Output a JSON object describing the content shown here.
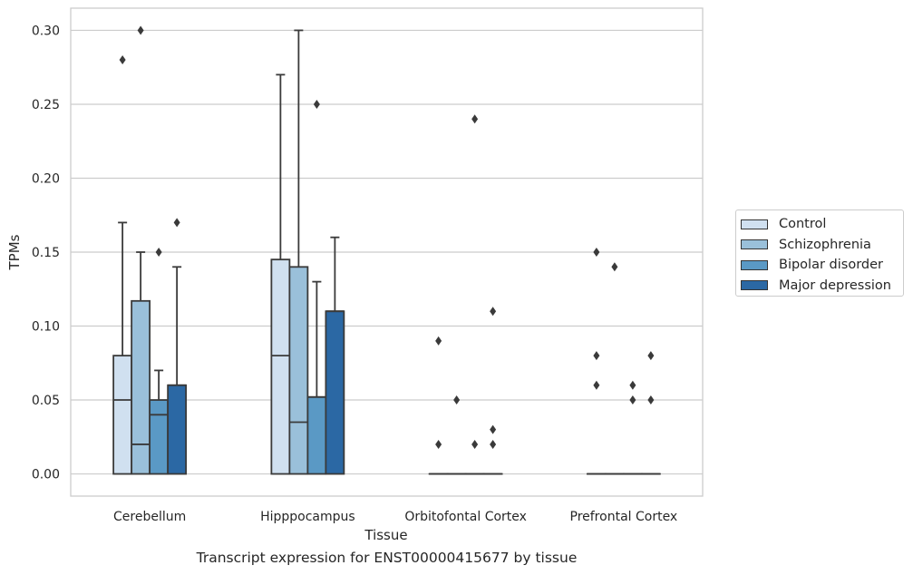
{
  "chart_data": {
    "type": "box",
    "xlabel": "Tissue",
    "ylabel": "TPMs",
    "caption": "Transcript expression for ENST00000415677 by tissue",
    "ylim": [
      -0.015,
      0.315
    ],
    "yticks": [
      "0.00",
      "0.05",
      "0.10",
      "0.15",
      "0.20",
      "0.25",
      "0.30"
    ],
    "grid": "horizontal",
    "legend_position": "right",
    "categories": [
      "Cerebellum",
      "Hipppocampus",
      "Orbitofontal Cortex",
      "Prefrontal Cortex"
    ],
    "series": [
      {
        "name": "Control",
        "color": "#d0e0f0",
        "boxes": [
          {
            "q1": 0.0,
            "median": 0.05,
            "q3": 0.08,
            "whisker_low": 0.0,
            "whisker_high": 0.17,
            "outliers": [
              0.28
            ]
          },
          {
            "q1": 0.0,
            "median": 0.08,
            "q3": 0.145,
            "whisker_low": 0.0,
            "whisker_high": 0.27,
            "outliers": []
          },
          {
            "q1": 0.0,
            "median": 0.0,
            "q3": 0.0,
            "whisker_low": 0.0,
            "whisker_high": 0.0,
            "outliers": [
              0.02,
              0.09
            ]
          },
          {
            "q1": 0.0,
            "median": 0.0,
            "q3": 0.0,
            "whisker_low": 0.0,
            "whisker_high": 0.0,
            "outliers": [
              0.06,
              0.08,
              0.15
            ]
          }
        ]
      },
      {
        "name": "Schizophrenia",
        "color": "#9ac0da",
        "boxes": [
          {
            "q1": 0.0,
            "median": 0.02,
            "q3": 0.117,
            "whisker_low": 0.0,
            "whisker_high": 0.15,
            "outliers": [
              0.3
            ]
          },
          {
            "q1": 0.0,
            "median": 0.035,
            "q3": 0.14,
            "whisker_low": 0.0,
            "whisker_high": 0.3,
            "outliers": []
          },
          {
            "q1": 0.0,
            "median": 0.0,
            "q3": 0.0,
            "whisker_low": 0.0,
            "whisker_high": 0.0,
            "outliers": [
              0.05
            ]
          },
          {
            "q1": 0.0,
            "median": 0.0,
            "q3": 0.0,
            "whisker_low": 0.0,
            "whisker_high": 0.0,
            "outliers": [
              0.14
            ]
          }
        ]
      },
      {
        "name": "Bipolar disorder",
        "color": "#5a99c5",
        "boxes": [
          {
            "q1": 0.0,
            "median": 0.04,
            "q3": 0.05,
            "whisker_low": 0.0,
            "whisker_high": 0.07,
            "outliers": [
              0.15
            ]
          },
          {
            "q1": 0.0,
            "median": 0.052,
            "q3": 0.052,
            "whisker_low": 0.0,
            "whisker_high": 0.13,
            "outliers": [
              0.25
            ]
          },
          {
            "q1": 0.0,
            "median": 0.0,
            "q3": 0.0,
            "whisker_low": 0.0,
            "whisker_high": 0.0,
            "outliers": [
              0.02,
              0.24
            ]
          },
          {
            "q1": 0.0,
            "median": 0.0,
            "q3": 0.0,
            "whisker_low": 0.0,
            "whisker_high": 0.0,
            "outliers": [
              0.05,
              0.06
            ]
          }
        ]
      },
      {
        "name": "Major depression",
        "color": "#2b68a4",
        "boxes": [
          {
            "q1": 0.0,
            "median": 0.06,
            "q3": 0.06,
            "whisker_low": 0.0,
            "whisker_high": 0.14,
            "outliers": [
              0.17
            ]
          },
          {
            "q1": 0.0,
            "median": 0.11,
            "q3": 0.11,
            "whisker_low": 0.0,
            "whisker_high": 0.16,
            "outliers": []
          },
          {
            "q1": 0.0,
            "median": 0.0,
            "q3": 0.0,
            "whisker_low": 0.0,
            "whisker_high": 0.0,
            "outliers": [
              0.02,
              0.03,
              0.11
            ]
          },
          {
            "q1": 0.0,
            "median": 0.0,
            "q3": 0.0,
            "whisker_low": 0.0,
            "whisker_high": 0.0,
            "outliers": [
              0.05,
              0.08
            ]
          }
        ]
      }
    ]
  }
}
